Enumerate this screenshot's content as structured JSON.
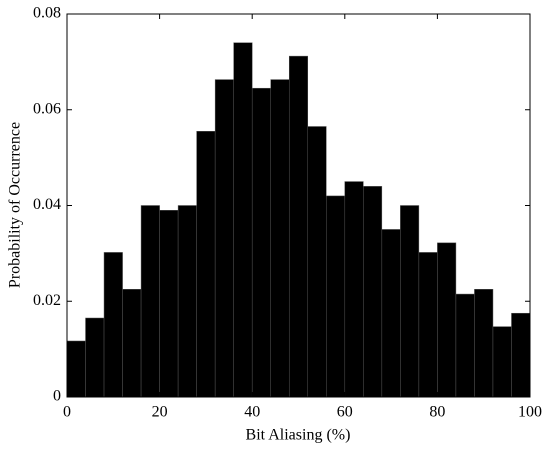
{
  "chart_data": {
    "type": "histogram",
    "xlabel": "Bit Aliasing (%)",
    "ylabel": "Probability of Occurrence",
    "bins": [
      0,
      4,
      8,
      12,
      16,
      20,
      24,
      28,
      32,
      36,
      40,
      44,
      48,
      52,
      56,
      60,
      64,
      68,
      72,
      76,
      80,
      84,
      88,
      92,
      96,
      100
    ],
    "values": [
      0.0117,
      0.0165,
      0.0302,
      0.0225,
      0.04,
      0.039,
      0.04,
      0.0555,
      0.0663,
      0.074,
      0.0645,
      0.0663,
      0.0712,
      0.0565,
      0.042,
      0.045,
      0.044,
      0.035,
      0.04,
      0.0302,
      0.0322,
      0.0215,
      0.0225,
      0.0147,
      0.0175
    ],
    "color": "#000000",
    "xlim": [
      0,
      100
    ],
    "xticks": [
      0,
      20,
      40,
      60,
      80,
      100
    ],
    "ylim": [
      0,
      0.08
    ],
    "yticks": [
      0,
      0.02,
      0.04,
      0.06,
      0.08
    ]
  }
}
